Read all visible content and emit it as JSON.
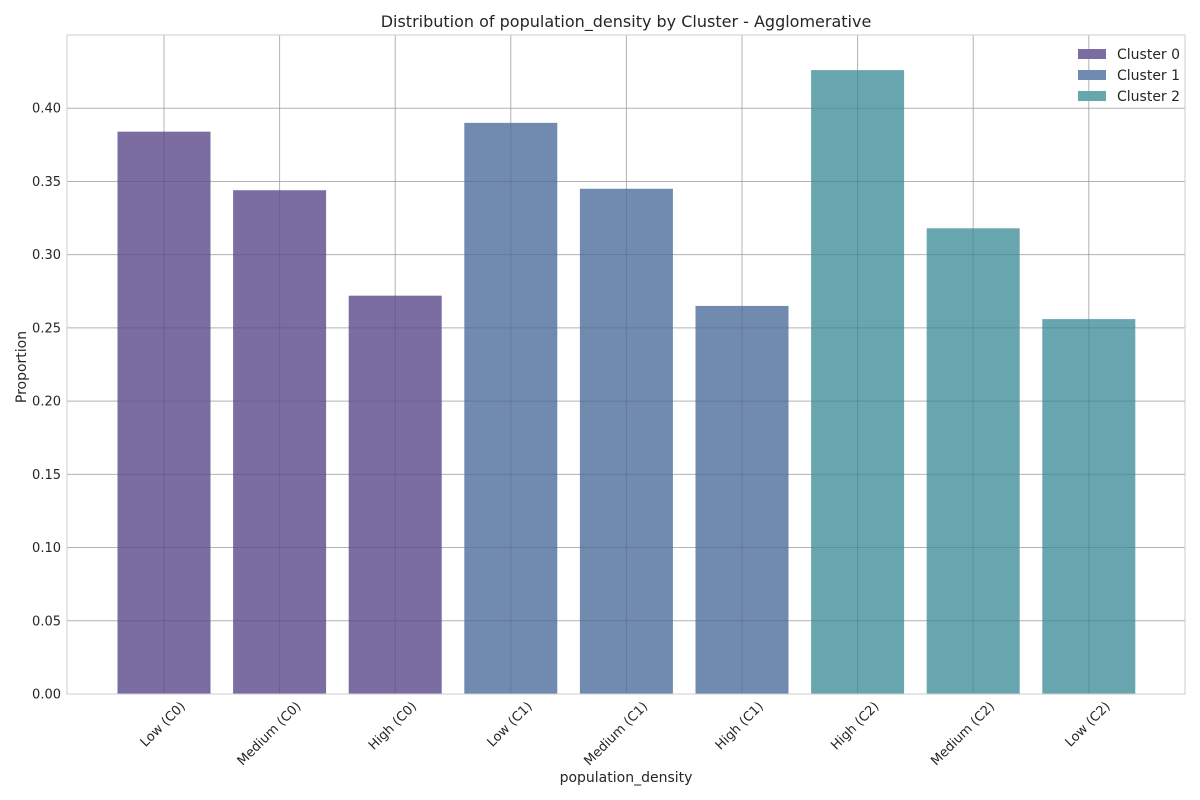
{
  "chart_data": {
    "type": "bar",
    "title": "Distribution of population_density by Cluster - Agglomerative",
    "xlabel": "population_density",
    "ylabel": "Proportion",
    "ylim": [
      0,
      0.45
    ],
    "yticks": [
      "0.00",
      "0.05",
      "0.10",
      "0.15",
      "0.20",
      "0.25",
      "0.30",
      "0.35",
      "0.40"
    ],
    "grid": true,
    "legend_position": "top-right",
    "categories": [
      "Low (C0)",
      "Medium (C0)",
      "High (C0)",
      "Low (C1)",
      "Medium (C1)",
      "High (C1)",
      "High (C2)",
      "Medium (C2)",
      "Low (C2)"
    ],
    "series": [
      {
        "name": "Cluster 0",
        "color": "#7b6ca1",
        "values": [
          0.384,
          0.344,
          0.272,
          null,
          null,
          null,
          null,
          null,
          null
        ]
      },
      {
        "name": "Cluster 1",
        "color": "#718bb0",
        "values": [
          null,
          null,
          null,
          0.39,
          0.345,
          0.265,
          null,
          null,
          null
        ]
      },
      {
        "name": "Cluster 2",
        "color": "#67a5af",
        "values": [
          null,
          null,
          null,
          null,
          null,
          null,
          0.426,
          0.318,
          0.256
        ]
      }
    ]
  }
}
